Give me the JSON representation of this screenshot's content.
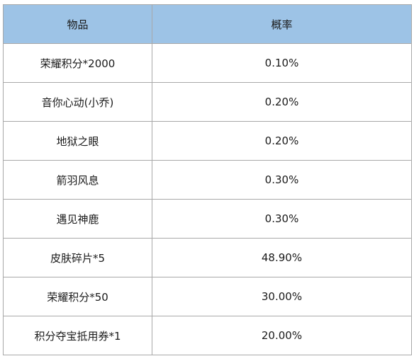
{
  "table": {
    "headers": [
      "物品",
      "概率"
    ],
    "rows": [
      {
        "item": "荣耀积分*2000",
        "rate": "0.10%"
      },
      {
        "item": "音你心动(小乔)",
        "rate": "0.20%"
      },
      {
        "item": "地狱之眼",
        "rate": "0.20%"
      },
      {
        "item": "箭羽风息",
        "rate": "0.30%"
      },
      {
        "item": "遇见神鹿",
        "rate": "0.30%"
      },
      {
        "item": "皮肤碎片*5",
        "rate": "48.90%"
      },
      {
        "item": "荣耀积分*50",
        "rate": "30.00%"
      },
      {
        "item": "积分夺宝抵用券*1",
        "rate": "20.00%"
      }
    ]
  },
  "colors": {
    "header_bg": "#9dc3e6",
    "border": "#a8a8a8"
  }
}
